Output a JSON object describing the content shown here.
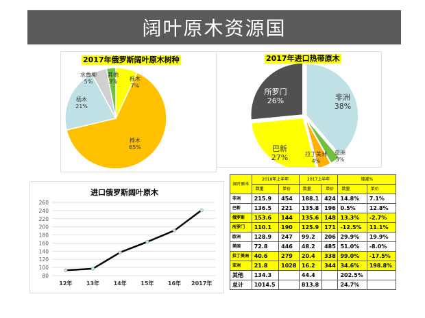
{
  "slide_title": "阔叶原木资源国",
  "chart_data": [
    {
      "type": "pie",
      "title": "2017年俄罗斯阔叶原木树种",
      "labels": [
        "栎木",
        "桦木",
        "杨木",
        "水曲柳",
        "其他"
      ],
      "values": [
        7,
        65,
        21,
        5,
        3
      ],
      "colors": [
        "#ffff00",
        "#ffc000",
        "#bfe0e4",
        "#d0d0d0",
        "#70c040"
      ]
    },
    {
      "type": "pie",
      "title": "2017年进口热带原木",
      "labels": [
        "非洲",
        "亚洲",
        "拉丁美洲",
        "巴新",
        "所罗门"
      ],
      "values": [
        38,
        3,
        4,
        27,
        26
      ],
      "colors": [
        "#bfe0e4",
        "#70c040",
        "#ffb000",
        "#ffff00",
        "#505050"
      ]
    },
    {
      "type": "line",
      "title": "进口俄罗斯阔叶原木",
      "categories": [
        "12年",
        "13年",
        "14年",
        "15年",
        "16年",
        "2017年"
      ],
      "values": [
        93,
        97,
        137,
        163,
        191,
        241
      ],
      "ylim": [
        80,
        260
      ],
      "yticks": [
        80,
        100,
        120,
        140,
        160,
        180,
        200,
        220,
        240,
        260
      ],
      "grid": true
    }
  ],
  "table": {
    "corner": "阔叶原木",
    "groups": [
      "2018年上半年",
      "2017上半年",
      "增减%"
    ],
    "sub": [
      "数量",
      "单价",
      "数量",
      "单价",
      "数量",
      "单价"
    ],
    "rows": [
      {
        "name": "非洲",
        "v": [
          "215.9",
          "454",
          "188.1",
          "424",
          "14.8%",
          "7.1%"
        ],
        "hl": false
      },
      {
        "name": "巴新",
        "v": [
          "136.5",
          "221",
          "135.8",
          "196",
          "0.5%",
          "12.8%"
        ],
        "hl": false
      },
      {
        "name": "俄罗斯",
        "v": [
          "153.6",
          "144",
          "135.6",
          "148",
          "13.3%",
          "-2.7%"
        ],
        "hl": true
      },
      {
        "name": "所罗门",
        "v": [
          "110.1",
          "190",
          "125.9",
          "171",
          "-12.5%",
          "11.1%"
        ],
        "hl": true
      },
      {
        "name": "欧洲",
        "v": [
          "128.9",
          "247",
          "99.2",
          "206",
          "29.9%",
          "19.9%"
        ],
        "hl": false
      },
      {
        "name": "美国",
        "v": [
          "72.8",
          "446",
          "48.2",
          "485",
          "51.0%",
          "-8.0%"
        ],
        "hl": false
      },
      {
        "name": "拉丁美洲",
        "v": [
          "40.6",
          "279",
          "20.4",
          "338",
          "99.0%",
          "-17.5%"
        ],
        "hl": true
      },
      {
        "name": "亚洲",
        "v": [
          "21.8",
          "1028",
          "16.2",
          "344",
          "34.6%",
          "198.8%"
        ],
        "hl": true
      },
      {
        "name": "其他",
        "v": [
          "134.3",
          "",
          "44.4",
          "",
          "202.5%",
          ""
        ],
        "hl": false
      },
      {
        "name": "总计",
        "v": [
          "1014.5",
          "",
          "813.8",
          "",
          "24.7%",
          ""
        ],
        "hl": false
      }
    ]
  }
}
